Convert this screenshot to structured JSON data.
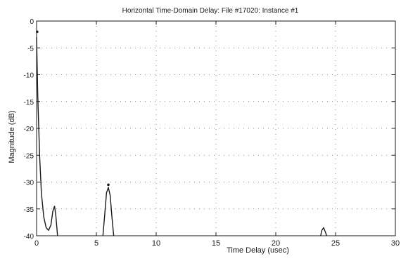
{
  "chart_data": {
    "type": "line",
    "title": "Horizontal Time-Domain Delay: File #17020: Instance #1",
    "xlabel": "Time Delay (usec)",
    "ylabel": "Magnitude (dB)",
    "xlim": [
      0,
      30
    ],
    "ylim": [
      -40,
      0
    ],
    "x_ticks": [
      0,
      5,
      10,
      15,
      20,
      25,
      30
    ],
    "y_ticks": [
      0,
      -5,
      -10,
      -15,
      -20,
      -25,
      -30,
      -35,
      -40
    ],
    "grid": "dotted",
    "segments": [
      {
        "x": [
          0,
          0.1,
          0.25,
          0.4,
          0.6,
          0.8,
          1.0,
          1.2,
          1.35,
          1.5,
          1.6,
          1.75
        ],
        "y": [
          -3,
          -14,
          -25,
          -32,
          -36.5,
          -38.5,
          -39,
          -38,
          -35.5,
          -34.5,
          -36,
          -40
        ]
      },
      {
        "x": [
          5.55,
          5.7,
          5.85,
          6.0,
          6.15,
          6.3,
          6.45
        ],
        "y": [
          -40,
          -36,
          -32,
          -31,
          -32.5,
          -36.5,
          -40
        ]
      },
      {
        "x": [
          23.75,
          23.85,
          24.0,
          24.15,
          24.25
        ],
        "y": [
          -40,
          -39,
          -38.5,
          -39.3,
          -40
        ]
      }
    ],
    "markers": [
      {
        "x": 0.05,
        "y": -2
      },
      {
        "x": 6.0,
        "y": -30.5
      }
    ]
  },
  "colors": {
    "axes": "#1a1a1a",
    "grid": "#666666",
    "line": "#1a1a1a",
    "background": "#ffffff"
  }
}
